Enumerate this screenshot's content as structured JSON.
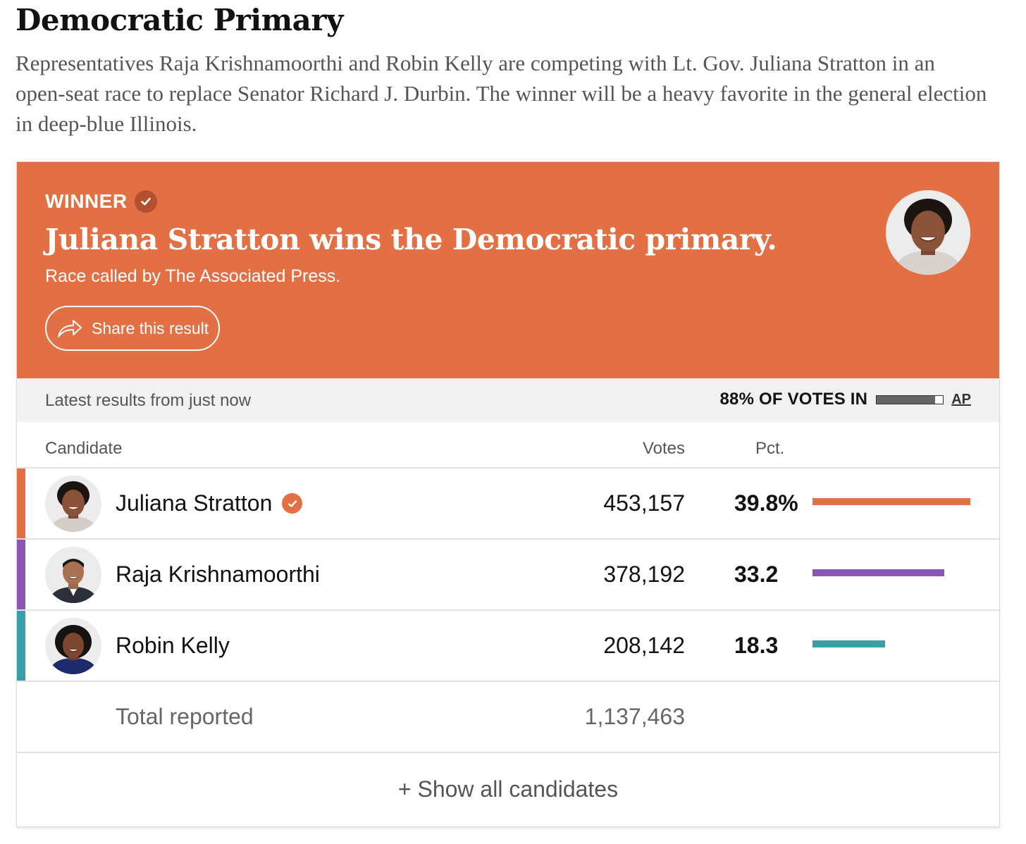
{
  "header": {
    "title": "Democratic Primary",
    "intro": "Representatives Raja Krishnamoorthi and Robin Kelly are competing with Lt. Gov. Juliana Stratton in an open-seat race to replace Senator Richard J. Durbin. The winner will be a heavy favorite in the general election in deep-blue Illinois."
  },
  "banner": {
    "winner_label": "WINNER",
    "headline": "Juliana Stratton wins the Democratic primary.",
    "called_by": "Race called by The Associated Press.",
    "share_label": "Share this result",
    "background_color": "#e27044"
  },
  "status": {
    "latest": "Latest results from just now",
    "votes_in_label": "88% OF VOTES IN",
    "votes_in_fraction": 0.88,
    "source_link": "AP"
  },
  "table": {
    "headers": {
      "candidate": "Candidate",
      "votes": "Votes",
      "pct": "Pct."
    },
    "candidates": [
      {
        "name": "Juliana Stratton",
        "votes": "453,157",
        "pct": "39.8%",
        "pct_value": 39.8,
        "color": "#e27044",
        "winner": true
      },
      {
        "name": "Raja Krishnamoorthi",
        "votes": "378,192",
        "pct": "33.2",
        "pct_value": 33.2,
        "color": "#8a56b6",
        "winner": false
      },
      {
        "name": "Robin Kelly",
        "votes": "208,142",
        "pct": "18.3",
        "pct_value": 18.3,
        "color": "#3a9ea6",
        "winner": false
      }
    ],
    "total_label": "Total reported",
    "total_votes": "1,137,463",
    "show_all": "+ Show all candidates"
  }
}
